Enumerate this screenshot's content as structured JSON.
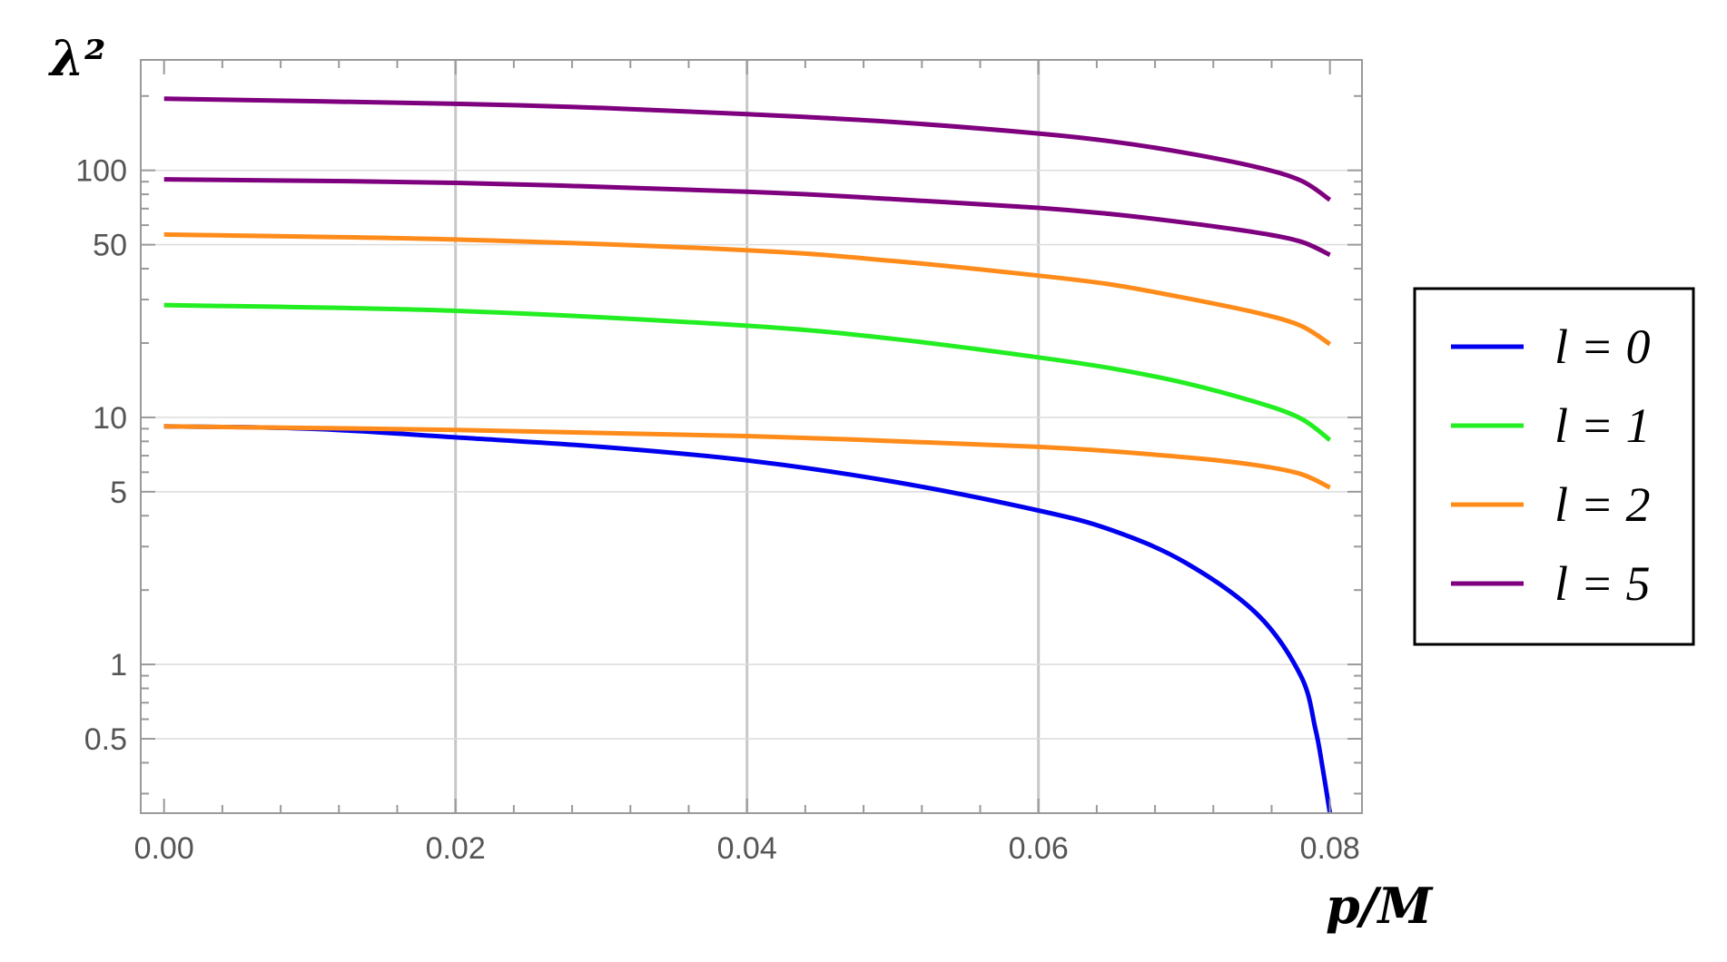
{
  "chart_data": {
    "type": "line",
    "xlabel": "p/M",
    "ylabel": "λ²",
    "y_scale": "log",
    "xlim": [
      -0.0016,
      0.0822
    ],
    "ylim": [
      0.25,
      280
    ],
    "x_ticks": [
      {
        "value": 0.0,
        "label": "0.00"
      },
      {
        "value": 0.02,
        "label": "0.02"
      },
      {
        "value": 0.04,
        "label": "0.04"
      },
      {
        "value": 0.06,
        "label": "0.06"
      },
      {
        "value": 0.08,
        "label": "0.08"
      }
    ],
    "y_ticks": [
      {
        "value": 0.5,
        "label": "0.5"
      },
      {
        "value": 1,
        "label": "1"
      },
      {
        "value": 5,
        "label": "5"
      },
      {
        "value": 10,
        "label": "10"
      },
      {
        "value": 50,
        "label": "50"
      },
      {
        "value": 100,
        "label": "100"
      }
    ],
    "vertical_gridlines": [
      0.02,
      0.04,
      0.06
    ],
    "horizontal_gridlines": [
      0.5,
      1,
      5,
      10,
      50,
      100
    ],
    "legend_position": "right",
    "legend": [
      {
        "label": "l = 0",
        "color": "#0000ee"
      },
      {
        "label": "l = 1",
        "color": "#22ee22"
      },
      {
        "label": "l = 2",
        "color": "#ff8c1a"
      },
      {
        "label": "l = 5",
        "color": "#7f007f"
      }
    ],
    "series": [
      {
        "name": "l = 0",
        "color": "#0000ee",
        "x": [
          0,
          0.01,
          0.02,
          0.03,
          0.04,
          0.05,
          0.06,
          0.065,
          0.07,
          0.075,
          0.078,
          0.079,
          0.0795,
          0.08
        ],
        "y": [
          9.2,
          9.0,
          8.3,
          7.6,
          6.7,
          5.5,
          4.2,
          3.5,
          2.6,
          1.6,
          0.9,
          0.55,
          0.38,
          0.25
        ]
      },
      {
        "name": "l = 2",
        "color": "#ff8c1a",
        "x": [
          0,
          0.02,
          0.04,
          0.06,
          0.07,
          0.075,
          0.078,
          0.08
        ],
        "y": [
          9.2,
          8.9,
          8.4,
          7.6,
          6.9,
          6.4,
          5.9,
          5.2
        ]
      },
      {
        "name": "l = 1",
        "color": "#22ee22",
        "x": [
          0,
          0.02,
          0.04,
          0.05,
          0.06,
          0.065,
          0.07,
          0.075,
          0.078,
          0.08
        ],
        "y": [
          28.5,
          27,
          23.5,
          20.8,
          17.5,
          15.8,
          13.8,
          11.5,
          9.9,
          8.1
        ]
      },
      {
        "name": "l = 2",
        "color": "#ff8c1a",
        "x": [
          0,
          0.02,
          0.04,
          0.05,
          0.06,
          0.065,
          0.07,
          0.075,
          0.078,
          0.08
        ],
        "y": [
          55,
          52.5,
          47.5,
          43,
          37.5,
          34.5,
          30.5,
          26.5,
          23.5,
          19.8
        ]
      },
      {
        "name": "l = 5",
        "color": "#7f007f",
        "x": [
          0,
          0.02,
          0.04,
          0.05,
          0.06,
          0.065,
          0.07,
          0.075,
          0.078,
          0.08
        ],
        "y": [
          92,
          89,
          82,
          76.5,
          70.5,
          66.5,
          61.5,
          56,
          51.5,
          45.5
        ]
      },
      {
        "name": "l = 5",
        "color": "#7f007f",
        "x": [
          0,
          0.02,
          0.03,
          0.04,
          0.05,
          0.06,
          0.065,
          0.07,
          0.075,
          0.078,
          0.08
        ],
        "y": [
          195,
          186,
          179,
          169,
          157,
          141,
          131,
          118,
          103,
          91,
          76
        ]
      }
    ]
  }
}
